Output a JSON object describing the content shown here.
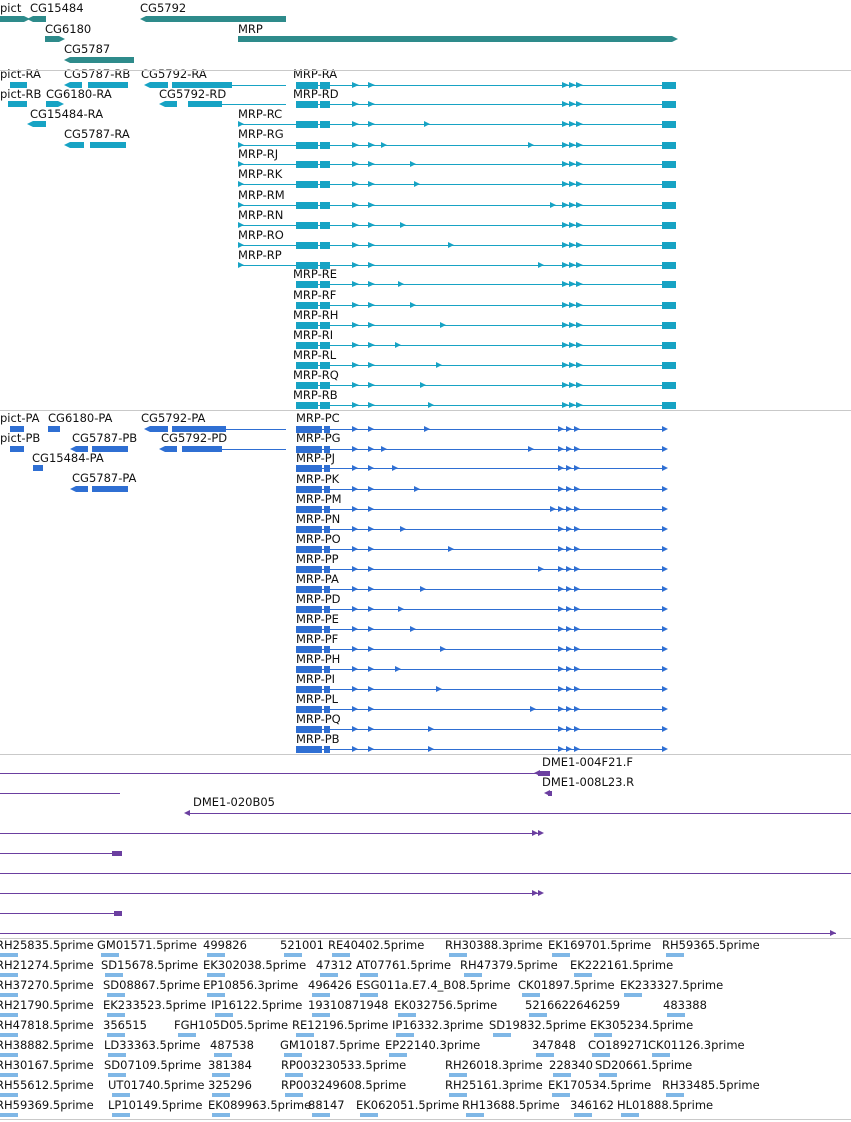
{
  "colors": {
    "gene": "#2e8b8b",
    "transcript": "#17a3c4",
    "protein": "#2f6fd3",
    "clone": "#6b3fa0",
    "est": "#7fb7e6",
    "separator": "#c9c9c9",
    "label": "#111111"
  },
  "tracks": {
    "genes": {
      "labels": [
        "pict",
        "CG15484",
        "CG5792",
        "CG6180",
        "MRP",
        "CG5787"
      ]
    },
    "transcripts": {
      "labels": [
        "pict-RA",
        "CG5787-RB",
        "CG5792-RA",
        "MRP-RA",
        "pict-RB",
        "CG6180-RA",
        "CG5792-RD",
        "MRP-RD",
        "CG15484-RA",
        "MRP-RC",
        "CG5787-RA",
        "MRP-RG",
        "MRP-RJ",
        "MRP-RK",
        "MRP-RM",
        "MRP-RN",
        "MRP-RO",
        "MRP-RP",
        "MRP-RE",
        "MRP-RF",
        "MRP-RH",
        "MRP-RI",
        "MRP-RL",
        "MRP-RQ",
        "MRP-RB"
      ]
    },
    "proteins": {
      "labels": [
        "pict-PA",
        "CG6180-PA",
        "CG5792-PA",
        "MRP-PC",
        "pict-PB",
        "CG5787-PB",
        "CG5792-PD",
        "MRP-PG",
        "CG15484-PA",
        "MRP-PJ",
        "CG5787-PA",
        "MRP-PK",
        "MRP-PM",
        "MRP-PN",
        "MRP-PO",
        "MRP-PP",
        "MRP-PA",
        "MRP-PD",
        "MRP-PE",
        "MRP-PF",
        "MRP-PH",
        "MRP-PI",
        "MRP-PL",
        "MRP-PQ",
        "MRP-PB"
      ]
    },
    "clones": {
      "labels": [
        "DME1-004F21.F",
        "DME1-008L23.R",
        "DME1-020B05"
      ]
    },
    "ests": {
      "rows": [
        [
          "RH25835.5prime",
          "GM01571.5prime",
          "499826",
          "521001",
          "RE40402.5prime",
          "RH30388.3prime",
          "EK169701.5prime",
          "RH59365.5prime"
        ],
        [
          "RH21274.5prime",
          "SD15678.5prime",
          "EK302038.5prime",
          "47312",
          "AT07761.5prime",
          "RH47379.5prime",
          "EK222161.5prime"
        ],
        [
          "RH37270.5prime",
          "SD08867.5prime",
          "EP10856.3prime",
          "496426",
          "ESG011a.E7.4_B08.5prime",
          "CK01897.5prime",
          "EK233327.5prime"
        ],
        [
          "RH21790.5prime",
          "EK233523.5prime",
          "IP16122.5prime",
          "19310871948",
          "EK032756.5prime",
          "5216622646259",
          "483388"
        ],
        [
          "RH47818.5prime",
          "356515",
          "FGH105D05.5prime",
          "RE12196.5prime",
          "IP16332.3prime",
          "SD19832.5prime",
          "EK305234.5prime"
        ],
        [
          "RH38882.5prime",
          "LD33363.5prime",
          "487538",
          "GM10187.5prime",
          "EP22140.3prime",
          "347848",
          "CO189271",
          "CK01126.3prime"
        ],
        [
          "RH30167.5prime",
          "SD07109.5prime",
          "381384",
          "RP003230533.5prime",
          "RH26018.3prime",
          "228340",
          "SD20661.5prime"
        ],
        [
          "RH55612.5prime",
          "UT01740.5prime",
          "325296",
          "RP003249608.5prime",
          "RH25161.3prime",
          "EK170534.5prime",
          "RH33485.5prime"
        ],
        [
          "RH59369.5prime",
          "LP10149.5prime",
          "EK089963.5prime",
          "88147",
          "EK062051.5prime",
          "RH13688.5prime",
          "346162",
          "HL01888.5prime"
        ]
      ]
    }
  }
}
